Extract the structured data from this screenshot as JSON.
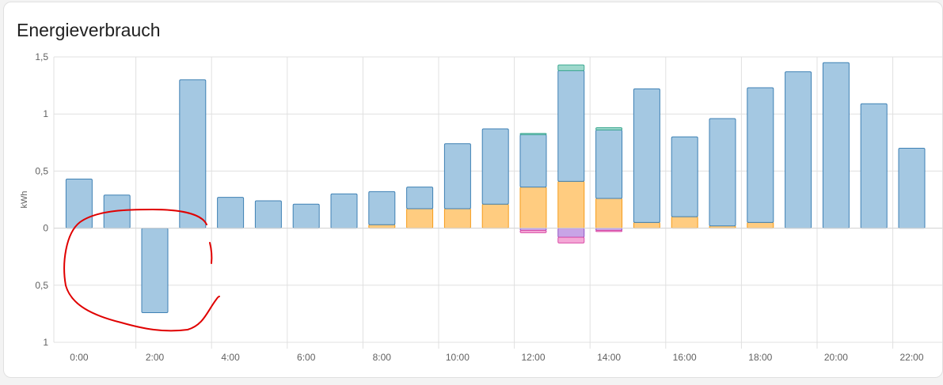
{
  "card": {
    "title": "Energieverbrauch"
  },
  "chart_data": {
    "type": "bar",
    "stacked": true,
    "title": "Energieverbrauch",
    "ylabel": "kWh",
    "xlabel": "",
    "ylim": [
      -1,
      1.5
    ],
    "yticks": [
      {
        "value": 1.5,
        "label": "1,5"
      },
      {
        "value": 1,
        "label": "1"
      },
      {
        "value": 0.5,
        "label": "0,5"
      },
      {
        "value": 0,
        "label": "0"
      },
      {
        "value": -0.5,
        "label": "0,5"
      },
      {
        "value": -1,
        "label": "1"
      }
    ],
    "x_tick_labels": [
      "0:00",
      "2:00",
      "4:00",
      "6:00",
      "8:00",
      "10:00",
      "12:00",
      "14:00",
      "16:00",
      "18:00",
      "20:00",
      "22:00"
    ],
    "categories": [
      "0:00",
      "1:00",
      "2:00",
      "3:00",
      "4:00",
      "5:00",
      "6:00",
      "7:00",
      "8:00",
      "9:00",
      "10:00",
      "11:00",
      "12:00",
      "13:00",
      "14:00",
      "15:00",
      "16:00",
      "17:00",
      "18:00",
      "19:00",
      "20:00",
      "21:00",
      "22:00"
    ],
    "grid": true,
    "legend": "none",
    "series": [
      {
        "color": "#ffcc80",
        "stroke": "#f59c1b",
        "values": [
          0,
          0,
          0,
          0,
          0,
          0,
          0,
          0,
          0.03,
          0.17,
          0.17,
          0.21,
          0.36,
          0.41,
          0.26,
          0.05,
          0.1,
          0.02,
          0.05,
          0,
          0,
          0,
          0
        ]
      },
      {
        "color": "#a4c8e2",
        "stroke": "#3f81b4",
        "values": [
          0.43,
          0.29,
          -0.74,
          1.3,
          0.27,
          0.24,
          0.21,
          0.3,
          0.29,
          0.19,
          0.57,
          0.66,
          0.46,
          0.97,
          0.6,
          1.17,
          0.7,
          0.94,
          1.18,
          1.37,
          1.45,
          1.09,
          0.7
        ]
      },
      {
        "color": "#9ed8cc",
        "stroke": "#3faa93",
        "values": [
          0,
          0,
          0,
          0,
          0,
          0,
          0,
          0,
          0,
          0,
          0,
          0,
          0.01,
          0.05,
          0.02,
          0,
          0,
          0,
          0,
          0,
          0,
          0,
          0
        ]
      },
      {
        "color": "#c8a4e6",
        "stroke": "#9355c4",
        "values": [
          0,
          0,
          0,
          0,
          0,
          0,
          0,
          0,
          0,
          0,
          0,
          0,
          -0.02,
          -0.08,
          -0.02,
          0,
          0,
          0,
          0,
          0,
          0,
          0,
          0
        ]
      },
      {
        "color": "#f4a8d6",
        "stroke": "#d94ea8",
        "values": [
          0,
          0,
          0,
          0,
          0,
          0,
          0,
          0,
          0,
          0,
          0,
          0,
          -0.02,
          -0.05,
          -0.01,
          0,
          0,
          0,
          0,
          0,
          0,
          0,
          0
        ]
      }
    ],
    "annotation_color": "#e00000"
  }
}
